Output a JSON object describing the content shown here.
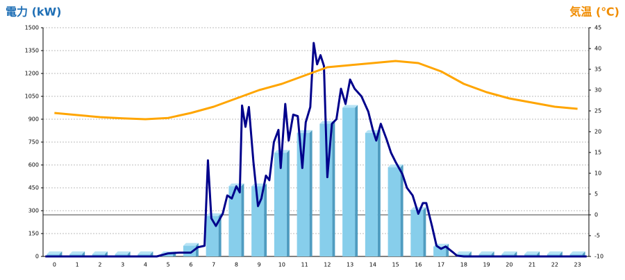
{
  "chart_data": {
    "type": "bar",
    "ylabel": "電力 (kW)",
    "y2label": "気温 (℃)",
    "categories": [
      "0",
      "1",
      "2",
      "3",
      "4",
      "5",
      "6",
      "7",
      "8",
      "9",
      "10",
      "11",
      "12",
      "13",
      "14",
      "15",
      "16",
      "17",
      "18",
      "19",
      "20",
      "21",
      "22",
      "23"
    ],
    "ylim": [
      0,
      1500
    ],
    "yticks": [
      0,
      150,
      300,
      450,
      600,
      750,
      900,
      1050,
      1200,
      1350,
      1500
    ],
    "y2lim": [
      -10,
      45
    ],
    "y2ticks": [
      -10,
      -5,
      0,
      5,
      10,
      15,
      20,
      25,
      30,
      35,
      40,
      45
    ],
    "grid": true,
    "series": [
      {
        "type": "bar",
        "color": "#87ceeb",
        "values": [
          15,
          15,
          15,
          15,
          15,
          15,
          70,
          265,
          460,
          460,
          680,
          810,
          870,
          975,
          810,
          585,
          305,
          65,
          15,
          15,
          15,
          15,
          15,
          15
        ]
      },
      {
        "type": "line",
        "color": "#00008b",
        "x": [
          -0.4,
          4.5,
          5.0,
          5.5,
          6.0,
          6.3,
          6.6,
          6.75,
          6.9,
          7.1,
          7.4,
          7.6,
          7.8,
          8.0,
          8.15,
          8.25,
          8.4,
          8.55,
          8.75,
          8.95,
          9.1,
          9.3,
          9.45,
          9.65,
          9.85,
          9.95,
          10.15,
          10.3,
          10.5,
          10.7,
          10.9,
          11.05,
          11.25,
          11.4,
          11.55,
          11.7,
          11.85,
          12.0,
          12.2,
          12.4,
          12.6,
          12.8,
          13.0,
          13.2,
          13.5,
          13.8,
          14.0,
          14.15,
          14.35,
          14.6,
          14.8,
          15.0,
          15.3,
          15.5,
          15.75,
          16.0,
          16.2,
          16.35,
          16.6,
          16.8,
          17.0,
          17.2,
          17.5,
          17.7,
          18.0,
          23.4
        ],
        "values": [
          0,
          0,
          20,
          25,
          25,
          60,
          70,
          630,
          250,
          200,
          280,
          400,
          380,
          460,
          420,
          990,
          850,
          980,
          620,
          330,
          380,
          530,
          500,
          750,
          830,
          580,
          1000,
          760,
          930,
          920,
          580,
          880,
          980,
          1400,
          1260,
          1320,
          1250,
          520,
          870,
          900,
          1100,
          1000,
          1160,
          1100,
          1050,
          950,
          830,
          760,
          870,
          770,
          680,
          620,
          540,
          450,
          400,
          280,
          350,
          350,
          200,
          70,
          50,
          65,
          30,
          5,
          0,
          0
        ]
      },
      {
        "type": "line",
        "axis": "y2",
        "color": "#ffa500",
        "values": [
          24.5,
          24,
          23.5,
          23.2,
          23,
          23.3,
          24.5,
          26,
          28,
          30,
          31.5,
          33.5,
          35.5,
          36,
          36.5,
          37,
          36.5,
          34.5,
          31.5,
          29.5,
          28,
          27,
          26,
          25.5
        ]
      }
    ]
  }
}
